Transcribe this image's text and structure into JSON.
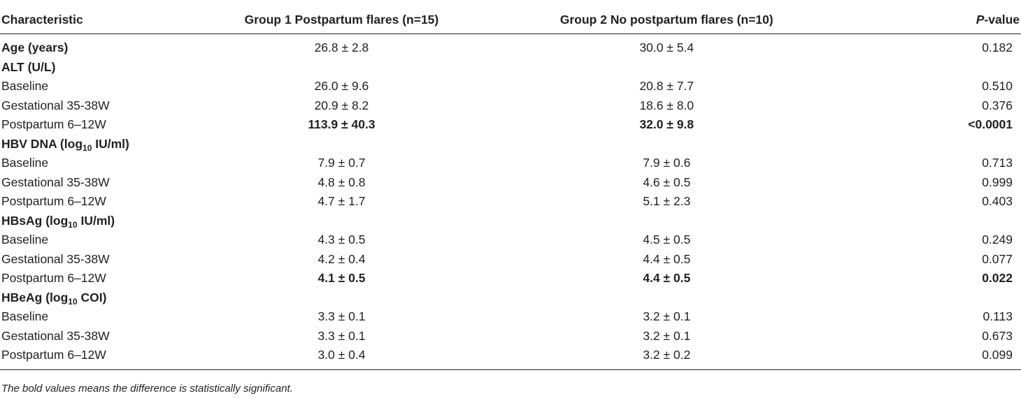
{
  "header": {
    "characteristic": "Characteristic",
    "group1": "Group 1 Postpartum flares (n=15)",
    "group2": "Group 2 No postpartum flares (n=10)",
    "pvalue_p": "P",
    "pvalue_rest": "-value"
  },
  "rows": [
    {
      "label": "Age (years)",
      "g1": "26.8 ± 2.8",
      "g2": "30.0 ± 5.4",
      "p": "0.182"
    },
    {
      "label": "ALT (U/L)"
    },
    {
      "label": "Baseline",
      "g1": "26.0 ± 9.6",
      "g2": "20.8 ± 7.7",
      "p": "0.510"
    },
    {
      "label": "Gestational 35-38W",
      "g1": "20.9 ± 8.2",
      "g2": "18.6 ± 8.0",
      "p": "0.376"
    },
    {
      "label": "Postpartum 6–12W",
      "g1": "113.9 ± 40.3",
      "g2": "32.0 ± 9.8",
      "p": "<0.0001"
    },
    {
      "label_pre": "HBV DNA (log",
      "label_sub": "10",
      "label_post": " IU/ml)"
    },
    {
      "label": "Baseline",
      "g1": "7.9 ± 0.7",
      "g2": "7.9 ± 0.6",
      "p": "0.713"
    },
    {
      "label": "Gestational 35-38W",
      "g1": "4.8 ± 0.8",
      "g2": "4.6 ± 0.5",
      "p": "0.999"
    },
    {
      "label": "Postpartum 6–12W",
      "g1": "4.7 ± 1.7",
      "g2": "5.1 ± 2.3",
      "p": "0.403"
    },
    {
      "label_pre": "HBsAg (log",
      "label_sub": "10",
      "label_post": " IU/ml)"
    },
    {
      "label": "Baseline",
      "g1": "4.3 ± 0.5",
      "g2": "4.5 ± 0.5",
      "p": "0.249"
    },
    {
      "label": "Gestational 35-38W",
      "g1": "4.2 ± 0.4",
      "g2": "4.4 ± 0.5",
      "p": "0.077"
    },
    {
      "label": "Postpartum 6–12W",
      "g1": "4.1 ± 0.5",
      "g2": "4.4 ± 0.5",
      "p": "0.022"
    },
    {
      "label_pre": "HBeAg (log",
      "label_sub": "10",
      "label_post": " COI)"
    },
    {
      "label": "Baseline",
      "g1": "3.3 ± 0.1",
      "g2": "3.2 ± 0.1",
      "p": "0.113"
    },
    {
      "label": "Gestational 35-38W",
      "g1": "3.3 ± 0.1",
      "g2": "3.2 ± 0.1",
      "p": "0.673"
    },
    {
      "label": "Postpartum 6–12W",
      "g1": "3.0 ± 0.4",
      "g2": "3.2 ± 0.2",
      "p": "0.099"
    }
  ],
  "footnote": "The bold values means the difference is statistically significant."
}
